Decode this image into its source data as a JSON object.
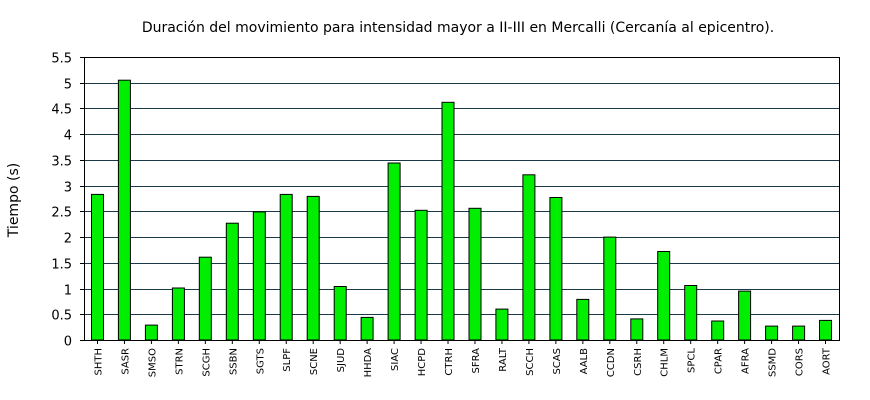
{
  "chart_data": {
    "type": "bar",
    "title": "Duración del movimiento para intensidad mayor a II-III en Mercalli (Cercanía al epicentro).",
    "xlabel": "",
    "ylabel": "Tiempo (s)",
    "ylim": [
      0,
      5.5
    ],
    "yticks": [
      "0",
      "0.5",
      "1",
      "1.5",
      "2",
      "2.5",
      "3",
      "3.5",
      "4",
      "4.5",
      "5",
      "5.5"
    ],
    "grid": true,
    "bar_color": "#00ee00",
    "categories": [
      "SHTH",
      "SASR",
      "SMSO",
      "STRN",
      "SCGH",
      "SSBN",
      "SGTS",
      "SLPF",
      "SCNE",
      "SJUD",
      "HHDA",
      "SIAC",
      "HCPD",
      "CTRH",
      "SFRA",
      "RALT",
      "SCCH",
      "SCAS",
      "AALB",
      "CCDN",
      "CSRH",
      "CHLM",
      "SPCL",
      "CPAR",
      "AFRA",
      "SSMD",
      "CORS",
      "AORT"
    ],
    "values": [
      2.83,
      5.05,
      0.29,
      1.01,
      1.61,
      2.27,
      2.49,
      2.83,
      2.79,
      1.04,
      0.44,
      3.44,
      2.52,
      4.62,
      2.56,
      0.6,
      3.21,
      2.77,
      0.79,
      2.0,
      0.41,
      1.72,
      1.06,
      0.37,
      0.95,
      0.27,
      0.27,
      0.38
    ]
  }
}
